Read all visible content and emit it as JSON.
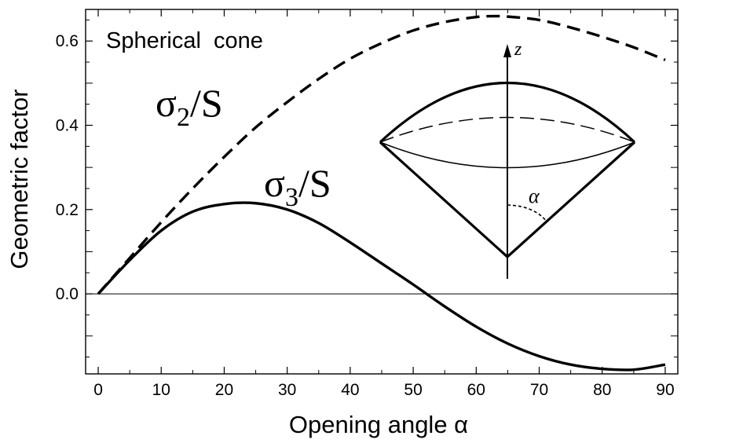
{
  "chart_data": {
    "type": "line",
    "title": "",
    "xlabel": "Opening angle α",
    "ylabel": "Geometric factor",
    "xlim": [
      -2,
      92
    ],
    "ylim": [
      -0.19,
      0.675
    ],
    "xticks": [
      0,
      10,
      20,
      30,
      40,
      50,
      60,
      70,
      80,
      90
    ],
    "yticks": [
      0.0,
      0.2,
      0.4,
      0.6
    ],
    "ytick_labels": [
      "0.0",
      "0.2",
      "0.4",
      "0.6"
    ],
    "grid": false,
    "annotation": "Spherical  cone",
    "series": [
      {
        "name": "σ2/S",
        "label_main": "σ",
        "label_sub": "2",
        "label_rest": "/S",
        "style": "dashed",
        "color": "#000000",
        "x": [
          0,
          5,
          10,
          15,
          20,
          25,
          30,
          35,
          40,
          45,
          50,
          55,
          60,
          63,
          65,
          70,
          75,
          80,
          85,
          90
        ],
        "y": [
          0.0,
          0.085,
          0.17,
          0.25,
          0.325,
          0.395,
          0.455,
          0.51,
          0.558,
          0.595,
          0.625,
          0.645,
          0.657,
          0.659,
          0.658,
          0.65,
          0.632,
          0.61,
          0.585,
          0.555
        ]
      },
      {
        "name": "σ3/S",
        "label_main": "σ",
        "label_sub": "3",
        "label_rest": "/S",
        "style": "solid",
        "color": "#000000",
        "x": [
          0,
          5,
          10,
          15,
          20,
          25,
          30,
          35,
          40,
          45,
          50,
          55,
          60,
          65,
          70,
          75,
          80,
          85,
          90
        ],
        "y": [
          0.0,
          0.08,
          0.15,
          0.195,
          0.213,
          0.215,
          0.2,
          0.168,
          0.122,
          0.072,
          0.022,
          -0.03,
          -0.078,
          -0.118,
          -0.148,
          -0.168,
          -0.178,
          -0.18,
          -0.168
        ]
      }
    ],
    "inset": {
      "axis_label": "z",
      "angle_label": "α"
    }
  }
}
